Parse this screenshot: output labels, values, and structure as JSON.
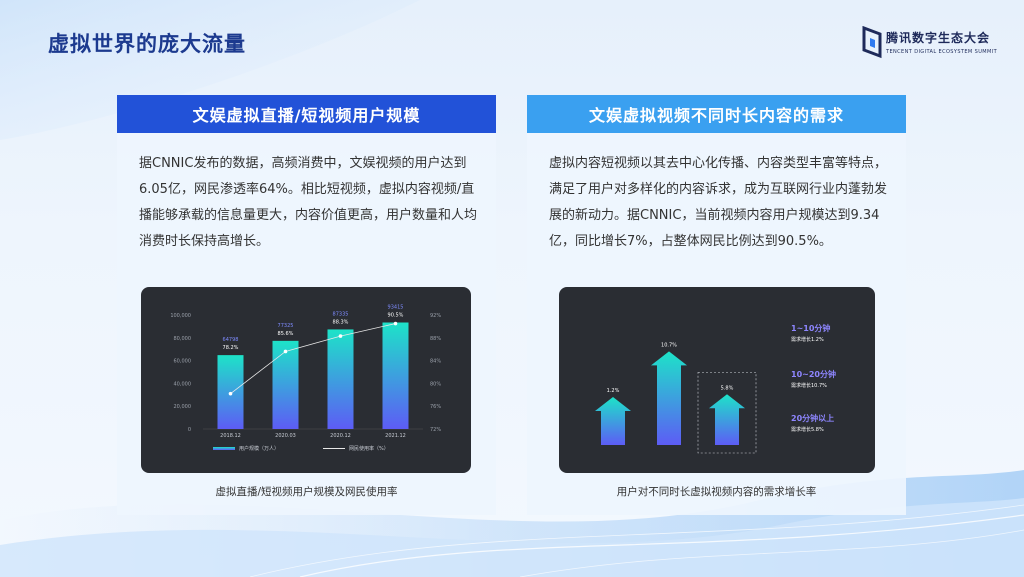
{
  "page": {
    "title": "虚拟世界的庞大流量",
    "logo_cn": "腾讯数字生态大会",
    "logo_en": "TENCENT DIGITAL ECOSYSTEM SUMMIT"
  },
  "left_panel": {
    "heading": "文娱虚拟直播/短视频用户规模",
    "body": "据CNNIC发布的数据，高频消费中，文娱视频的用户达到6.05亿，网民渗透率64%。相比短视频，虚拟内容视频/直播能够承载的信息量更大，内容价值更高，用户数量和人均消费时长保持高增长。",
    "caption": "虚拟直播/短视频用户规模及网民使用率"
  },
  "right_panel": {
    "heading": "文娱虚拟视频不同时长内容的需求",
    "body": "虚拟内容短视频以其去中心化传播、内容类型丰富等特点，满足了用户对多样化的内容诉求，成为互联网行业内蓬勃发展的新动力。据CNNIC，当前视频内容用户规模达到9.34亿，同比增长7%，占整体网民比例达到90.5%。",
    "caption": "用户对不同时长虚拟视频内容的需求增长率"
  },
  "chart_data": [
    {
      "type": "bar",
      "categories": [
        "2018.12",
        "2020.03",
        "2020.12",
        "2021.12"
      ],
      "series": [
        {
          "name": "用户规模（万人）",
          "type": "bar",
          "values": [
            64798,
            77325,
            87335,
            93415
          ],
          "labels": [
            "64798",
            "77325",
            "87335",
            "93415"
          ]
        },
        {
          "name": "网民使用率（%）",
          "type": "line",
          "values": [
            78.2,
            85.6,
            88.3,
            90.5
          ],
          "labels": [
            "78.2%",
            "85.6%",
            "88.3%",
            "90.5%"
          ]
        }
      ],
      "y_left": {
        "ylim": [
          0,
          100000
        ],
        "ticks": [
          "0",
          "20,000",
          "40,000",
          "60,000",
          "80,000",
          "100,000"
        ]
      },
      "y_right": {
        "ylim": [
          72,
          92
        ],
        "ticks": [
          "72%",
          "76%",
          "80%",
          "84%",
          "88%",
          "92%"
        ]
      },
      "legend_position": "bottom"
    },
    {
      "type": "bar",
      "categories": [
        "1~10分钟",
        "10~20分钟",
        "20分钟以上"
      ],
      "values": [
        1.2,
        10.7,
        5.8
      ],
      "labels": [
        "1.2%",
        "10.7%",
        "5.8%"
      ],
      "annotations": [
        {
          "title": "1~10分钟",
          "text": "需求增长1.2%"
        },
        {
          "title": "10~20分钟",
          "text": "需求增长10.7%"
        },
        {
          "title": "20分钟以上",
          "text": "需求增长5.8%"
        }
      ]
    }
  ],
  "colors": {
    "title": "#1c3a8f",
    "left_header": "#2252d8",
    "right_header": "#3aa0f0",
    "bar_top": "#1de3c8",
    "bar_bottom": "#5d5cf5",
    "card_bg": "#2a2d33"
  }
}
